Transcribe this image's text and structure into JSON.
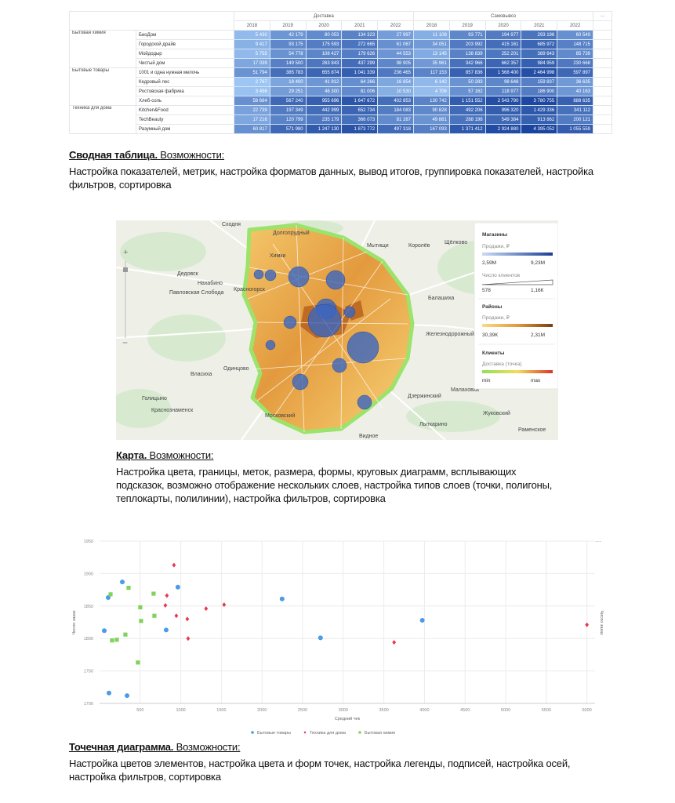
{
  "table": {
    "header_groups": [
      "Доставка",
      "Самовывоз"
    ],
    "more": "···",
    "columns": [
      "2018",
      "2019",
      "2020",
      "2021",
      "2022",
      "2018",
      "2019",
      "2020",
      "2021",
      "2022"
    ],
    "groups": [
      {
        "name": "Бытовая химия",
        "rows": [
          {
            "name": "БиоДом",
            "cells": [
              "5 430",
              "42 179",
              "80 053",
              "134 323",
              "27 997",
              "11 108",
              "93 771",
              "194 977",
              "293 196",
              "60 549"
            ]
          },
          {
            "name": "Городской драйв",
            "cells": [
              "9 417",
              "93 175",
              "175 593",
              "272 665",
              "61 067",
              "34 051",
              "203 992",
              "415 161",
              "685 972",
              "148 715"
            ]
          },
          {
            "name": "Мойдодыр",
            "cells": [
              "5 755",
              "54 778",
              "108 427",
              "179 626",
              "44 553",
              "13 145",
              "138 839",
              "252 201",
              "389 643",
              "85 739"
            ]
          },
          {
            "name": "Чистый дом",
            "cells": [
              "17 039",
              "149 500",
              "263 843",
              "437 299",
              "98 905",
              "35 961",
              "342 966",
              "662 357",
              "984 959",
              "230 668"
            ]
          }
        ]
      },
      {
        "name": "Бытовые товары",
        "rows": [
          {
            "name": "1001 и одна нужная мелочь",
            "cells": [
              "51 794",
              "385 783",
              "655 874",
              "1 041 339",
              "236 465",
              "117 153",
              "857 836",
              "1 568 400",
              "2 464 998",
              "597 897"
            ]
          },
          {
            "name": "Кедровый лес",
            "cells": [
              "2 767",
              "18 400",
              "41 912",
              "64 266",
              "16 854",
              "6 142",
              "50 283",
              "98 648",
              "159 837",
              "36 635"
            ]
          },
          {
            "name": "Ростовская фабрика",
            "cells": [
              "3 456",
              "29 251",
              "46 300",
              "81 006",
              "10 530",
              "4 706",
              "57 162",
              "118 977",
              "186 900",
              "40 163"
            ]
          },
          {
            "name": "Хлеб-соль",
            "cells": [
              "58 684",
              "567 240",
              "955 696",
              "1 647 672",
              "402 853",
              "130 742",
              "1 151 552",
              "2 543 790",
              "3 780 755",
              "888 635"
            ]
          }
        ]
      },
      {
        "name": "Техника для дома",
        "rows": [
          {
            "name": "Kitchen&Food",
            "cells": [
              "22 739",
              "197 349",
              "442 999",
              "652 734",
              "184 083",
              "90 828",
              "492 206",
              "996 320",
              "1 429 336",
              "341 112"
            ]
          },
          {
            "name": "TechBeauty",
            "cells": [
              "17 216",
              "120 799",
              "235 179",
              "366 073",
              "81 287",
              "49 881",
              "288 198",
              "549 384",
              "913 862",
              "200 121"
            ]
          },
          {
            "name": "Разумный дом",
            "cells": [
              "60 817",
              "571 980",
              "1 247 130",
              "1 873 772",
              "497 318",
              "167 093",
              "1 371 412",
              "2 924 880",
              "4 395 052",
              "1 055 559"
            ]
          }
        ]
      }
    ]
  },
  "sections": [
    {
      "title": "Сводная таблица.",
      "subtitle": "Возможности:",
      "text": "Настройка показателей, метрик, настройка форматов данных, вывод итогов, группировка показателей, настройка фильтров, сортировка"
    },
    {
      "title": "Карта.",
      "subtitle": "Возможности:",
      "text": "Настройка цвета, границы, меток, размера, формы, круговых диаграмм, всплывающих подсказок, возможно отображение нескольких слоев, настройка типов слоев (точки, полигоны, теплокарты, полилинии), настройка фильтров, сортировка"
    },
    {
      "title": "Точечная диаграмма.",
      "subtitle": "Возможности:",
      "text": "Настройка цветов элементов, настройка цвета и форм точек, настройка легенды, подписей, настройка осей, настройка фильтров, сортировка"
    }
  ],
  "map": {
    "labels": [
      "Сходня",
      "Долгопрудный",
      "Мытищи",
      "Королёв",
      "Щёлково",
      "Химки",
      "Дедовск",
      "Нахабино",
      "Павловская Слобода",
      "Красногорск",
      "Балашиха",
      "Железнодорожный",
      "Одинцово",
      "Власиха",
      "Голицыно",
      "Краснознаменск",
      "Московский",
      "Видное",
      "Малаховка",
      "Жуковский",
      "Раменское",
      "Дзержинский",
      "Лыткарино"
    ],
    "legend": {
      "stores_title": "Магазины",
      "stores_metric": "Продажи, ₽",
      "stores_min": "2,59М",
      "stores_max": "9,23М",
      "count_title": "Число клиентов",
      "count_min": "578",
      "count_max": "1,16К",
      "districts_title": "Районы",
      "districts_metric": "Продажи, ₽",
      "districts_min": "30,39К",
      "districts_max": "2,31М",
      "clients_title": "Клиенты",
      "clients_metric": "Доставка (точка)",
      "clients_min": "min",
      "clients_max": "max"
    }
  },
  "scatter": {
    "type": "scatter",
    "x_label": "Средний чек",
    "y_label": "Число заказ",
    "y2_label": "Число заказ",
    "more": "···",
    "xlim": [
      0,
      6100
    ],
    "ylim": [
      1700,
      1950
    ],
    "xticks": [
      500,
      1000,
      1500,
      2000,
      2500,
      3000,
      3500,
      4000,
      4500,
      5000,
      5500,
      6000
    ],
    "yticks": [
      1700,
      1750,
      1800,
      1850,
      1900,
      1950
    ],
    "grid": true,
    "series": [
      {
        "name": "Бытовые товары",
        "color": "#4a9be8",
        "marker": "circle",
        "x": [
          106,
          280,
          964,
          58,
          820,
          116,
          338,
          2247,
          2720,
          3973
        ],
        "values": [
          1863,
          1887,
          1879,
          1812,
          1813,
          1716,
          1712,
          1861,
          1801,
          1828
        ]
      },
      {
        "name": "Техника для дома",
        "color": "#e8384f",
        "marker": "diamond",
        "x": [
          916,
          829,
          810,
          945,
          1080,
          1090,
          1311,
          1533,
          3626,
          6000
        ],
        "values": [
          1913,
          1866,
          1851,
          1835,
          1830,
          1800,
          1846,
          1852,
          1794,
          1821
        ]
      },
      {
        "name": "Бытовая химия",
        "color": "#7fd35b",
        "marker": "square",
        "x": [
          135,
          357,
          665,
          501,
          511,
          675,
          318,
          154,
          212,
          472
        ],
        "values": [
          1868,
          1878,
          1869,
          1848,
          1827,
          1835,
          1806,
          1797,
          1798,
          1763
        ]
      }
    ]
  }
}
